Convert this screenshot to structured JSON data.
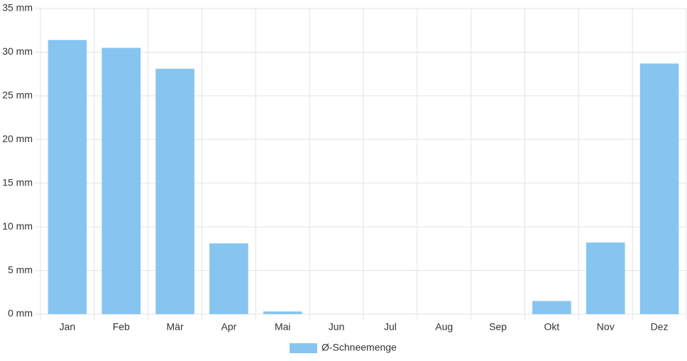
{
  "chart_data": {
    "type": "bar",
    "categories": [
      "Jan",
      "Feb",
      "Mär",
      "Apr",
      "Mai",
      "Jun",
      "Jul",
      "Aug",
      "Sep",
      "Okt",
      "Nov",
      "Dez"
    ],
    "series": [
      {
        "name": "Ø-Schneemenge",
        "color": "#86c5f0",
        "values": [
          31.4,
          30.5,
          28.1,
          8.1,
          0.3,
          0,
          0,
          0,
          0,
          1.5,
          8.2,
          28.7
        ]
      }
    ],
    "ylim": [
      0,
      35
    ],
    "yticks": [
      {
        "value": 0,
        "label": "0 mm"
      },
      {
        "value": 5,
        "label": "5 mm"
      },
      {
        "value": 10,
        "label": "10 mm"
      },
      {
        "value": 15,
        "label": "15 mm"
      },
      {
        "value": 20,
        "label": "20 mm"
      },
      {
        "value": 25,
        "label": "25 mm"
      },
      {
        "value": 30,
        "label": "30 mm"
      },
      {
        "value": 35,
        "label": "35 mm"
      }
    ],
    "grid": true,
    "legend": "bottom"
  }
}
